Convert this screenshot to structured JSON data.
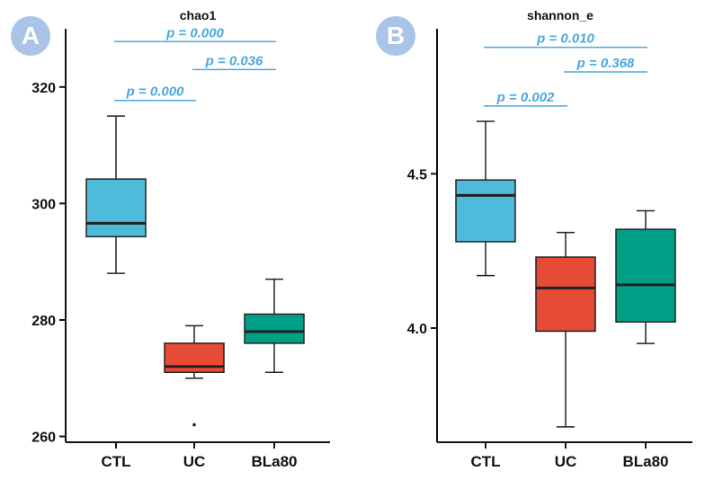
{
  "colors": {
    "CTL": "#4dbbd9",
    "UC": "#e64b35",
    "BLa80": "#00a087",
    "pvalue": "#4aa8e0"
  },
  "chart_data": [
    {
      "type": "box",
      "panel_label": "A",
      "title": "chao1",
      "categories": [
        "CTL",
        "UC",
        "BLa80"
      ],
      "ylim": [
        259,
        330
      ],
      "yticks": [
        260,
        280,
        300,
        320
      ],
      "boxes": [
        {
          "category": "CTL",
          "min": 288,
          "q1": 294.3,
          "median": 296.6,
          "q3": 304.2,
          "max": 315,
          "outliers": []
        },
        {
          "category": "UC",
          "min": 270,
          "q1": 271,
          "median": 272,
          "q3": 276,
          "max": 279,
          "outliers": [
            262
          ]
        },
        {
          "category": "BLa80",
          "min": 271,
          "q1": 276,
          "median": 278,
          "q3": 281,
          "max": 287,
          "outliers": []
        }
      ],
      "comparisons": [
        {
          "from": "CTL",
          "to": "BLa80",
          "y": 327.8,
          "label": "p = 0.000"
        },
        {
          "from": "UC",
          "to": "BLa80",
          "y": 323.0,
          "label": "p = 0.036"
        },
        {
          "from": "CTL",
          "to": "UC",
          "y": 317.7,
          "label": "p = 0.000"
        }
      ]
    },
    {
      "type": "box",
      "panel_label": "B",
      "title": "shannon_e",
      "categories": [
        "CTL",
        "UC",
        "BLa80"
      ],
      "ylim": [
        3.63,
        4.97
      ],
      "yticks": [
        4.0,
        4.5
      ],
      "tick_labels": [
        "4.0",
        "4.5"
      ],
      "boxes": [
        {
          "category": "CTL",
          "min": 4.17,
          "q1": 4.28,
          "median": 4.43,
          "q3": 4.48,
          "max": 4.67,
          "outliers": []
        },
        {
          "category": "UC",
          "min": 3.68,
          "q1": 3.99,
          "median": 4.13,
          "q3": 4.23,
          "max": 4.31,
          "outliers": []
        },
        {
          "category": "BLa80",
          "min": 3.95,
          "q1": 4.02,
          "median": 4.14,
          "q3": 4.32,
          "max": 4.38,
          "outliers": []
        }
      ],
      "comparisons": [
        {
          "from": "CTL",
          "to": "BLa80",
          "y": 4.91,
          "label": "p = 0.010"
        },
        {
          "from": "UC",
          "to": "BLa80",
          "y": 4.83,
          "label": "p = 0.368"
        },
        {
          "from": "CTL",
          "to": "UC",
          "y": 4.72,
          "label": "p = 0.002"
        }
      ]
    }
  ]
}
